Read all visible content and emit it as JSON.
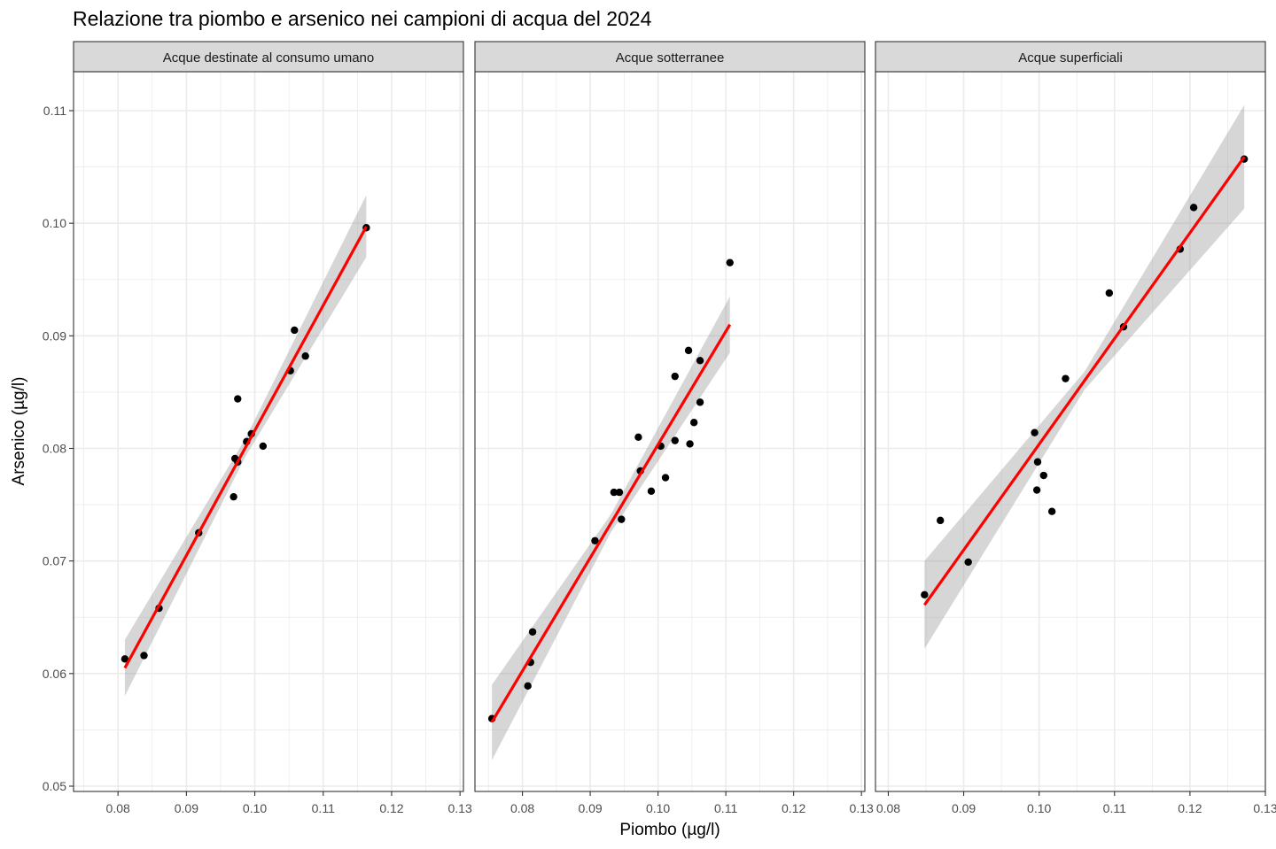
{
  "chart_data": {
    "type": "scatter",
    "title": "Relazione tra piombo e arsenico nei campioni di acqua del 2024",
    "xlabel": "Piombo (µg/l)",
    "ylabel": "Arsenico (µg/l)",
    "ylim": [
      0.05,
      0.11
    ],
    "y_ticks": [
      {
        "value": 0.05,
        "label": "0.05"
      },
      {
        "value": 0.06,
        "label": "0.06"
      },
      {
        "value": 0.07,
        "label": "0.07"
      },
      {
        "value": 0.08,
        "label": "0.08"
      },
      {
        "value": 0.09,
        "label": "0.09"
      },
      {
        "value": 0.1,
        "label": "0.10"
      },
      {
        "value": 0.11,
        "label": "0.11"
      }
    ],
    "grid": true,
    "fit_line_color": "#ff0000",
    "ribbon_color": "#999999",
    "point_color": "#000000",
    "panels": [
      {
        "label": "Acque destinate al consumo umano",
        "xlim": [
          0.0735,
          0.1305
        ],
        "x_ticks": [
          {
            "value": 0.08,
            "label": "0.08"
          },
          {
            "value": 0.09,
            "label": "0.09"
          },
          {
            "value": 0.1,
            "label": "0.10"
          },
          {
            "value": 0.11,
            "label": "0.11"
          },
          {
            "value": 0.12,
            "label": "0.12"
          },
          {
            "value": 0.13,
            "label": "0.13"
          }
        ],
        "points": [
          {
            "x": 0.081,
            "y": 0.0613
          },
          {
            "x": 0.0838,
            "y": 0.0616
          },
          {
            "x": 0.086,
            "y": 0.0658
          },
          {
            "x": 0.0918,
            "y": 0.0725
          },
          {
            "x": 0.0969,
            "y": 0.0757
          },
          {
            "x": 0.0971,
            "y": 0.0791
          },
          {
            "x": 0.0975,
            "y": 0.0844
          },
          {
            "x": 0.0975,
            "y": 0.0788
          },
          {
            "x": 0.0988,
            "y": 0.0806
          },
          {
            "x": 0.0995,
            "y": 0.0813
          },
          {
            "x": 0.1012,
            "y": 0.0802
          },
          {
            "x": 0.1052,
            "y": 0.0869
          },
          {
            "x": 0.1058,
            "y": 0.0905
          },
          {
            "x": 0.1074,
            "y": 0.0882
          },
          {
            "x": 0.1163,
            "y": 0.0996
          }
        ],
        "fit": {
          "x0": 0.081,
          "y0": 0.0605,
          "x1": 0.1163,
          "y1": 0.0997
        },
        "ribbon": {
          "upper_left": 0.063,
          "lower_left": 0.058,
          "upper_right": 0.1025,
          "lower_right": 0.097
        }
      },
      {
        "label": "Acque sotterranee",
        "xlim": [
          0.073,
          0.1305
        ],
        "x_ticks": [
          {
            "value": 0.08,
            "label": "0.08"
          },
          {
            "value": 0.09,
            "label": "0.09"
          },
          {
            "value": 0.1,
            "label": "0.10"
          },
          {
            "value": 0.11,
            "label": "0.11"
          },
          {
            "value": 0.12,
            "label": "0.12"
          },
          {
            "value": 0.13,
            "label": "0.13"
          }
        ],
        "points": [
          {
            "x": 0.0755,
            "y": 0.056
          },
          {
            "x": 0.0808,
            "y": 0.0589
          },
          {
            "x": 0.0812,
            "y": 0.061
          },
          {
            "x": 0.0815,
            "y": 0.0637
          },
          {
            "x": 0.0907,
            "y": 0.0718
          },
          {
            "x": 0.0935,
            "y": 0.0761
          },
          {
            "x": 0.0943,
            "y": 0.0761
          },
          {
            "x": 0.0946,
            "y": 0.0737
          },
          {
            "x": 0.0971,
            "y": 0.081
          },
          {
            "x": 0.0974,
            "y": 0.078
          },
          {
            "x": 0.099,
            "y": 0.0762
          },
          {
            "x": 0.1004,
            "y": 0.0802
          },
          {
            "x": 0.1011,
            "y": 0.0774
          },
          {
            "x": 0.1025,
            "y": 0.0864
          },
          {
            "x": 0.1025,
            "y": 0.0807
          },
          {
            "x": 0.1045,
            "y": 0.0887
          },
          {
            "x": 0.1047,
            "y": 0.0804
          },
          {
            "x": 0.1053,
            "y": 0.0823
          },
          {
            "x": 0.1062,
            "y": 0.0878
          },
          {
            "x": 0.1062,
            "y": 0.0841
          },
          {
            "x": 0.1106,
            "y": 0.0965
          }
        ],
        "fit": {
          "x0": 0.0755,
          "y0": 0.0557,
          "x1": 0.1106,
          "y1": 0.091
        },
        "ribbon": {
          "upper_left": 0.059,
          "lower_left": 0.0523,
          "upper_right": 0.0935,
          "lower_right": 0.0885
        }
      },
      {
        "label": "Acque superficiali",
        "xlim": [
          0.0783,
          0.13
        ],
        "x_ticks": [
          {
            "value": 0.08,
            "label": "0.08"
          },
          {
            "value": 0.09,
            "label": "0.09"
          },
          {
            "value": 0.1,
            "label": "0.10"
          },
          {
            "value": 0.11,
            "label": "0.11"
          },
          {
            "value": 0.12,
            "label": "0.12"
          },
          {
            "value": 0.13,
            "label": "0.13"
          }
        ],
        "points": [
          {
            "x": 0.0848,
            "y": 0.067
          },
          {
            "x": 0.0869,
            "y": 0.0736
          },
          {
            "x": 0.0906,
            "y": 0.0699
          },
          {
            "x": 0.0994,
            "y": 0.0814
          },
          {
            "x": 0.0997,
            "y": 0.0763
          },
          {
            "x": 0.0998,
            "y": 0.0788
          },
          {
            "x": 0.1006,
            "y": 0.0776
          },
          {
            "x": 0.1017,
            "y": 0.0744
          },
          {
            "x": 0.1035,
            "y": 0.0862
          },
          {
            "x": 0.1093,
            "y": 0.0938
          },
          {
            "x": 0.1112,
            "y": 0.0908
          },
          {
            "x": 0.1187,
            "y": 0.0977
          },
          {
            "x": 0.1205,
            "y": 0.1014
          },
          {
            "x": 0.1272,
            "y": 0.1057
          }
        ],
        "fit": {
          "x0": 0.0848,
          "y0": 0.0661,
          "x1": 0.1272,
          "y1": 0.1059
        },
        "ribbon": {
          "upper_left": 0.07,
          "lower_left": 0.0622,
          "upper_right": 0.1105,
          "lower_right": 0.1013
        }
      }
    ]
  }
}
